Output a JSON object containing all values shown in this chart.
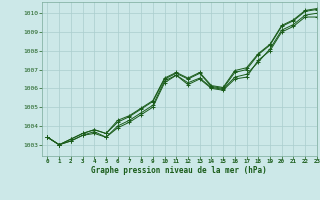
{
  "title": "Graphe pression niveau de la mer (hPa)",
  "bg_color": "#cce8e8",
  "grid_color": "#aacece",
  "line_color": "#1a5c1a",
  "xlim": [
    -0.5,
    23
  ],
  "ylim": [
    1002.4,
    1010.6
  ],
  "yticks": [
    1003,
    1004,
    1005,
    1006,
    1007,
    1008,
    1009,
    1010
  ],
  "xticks": [
    0,
    1,
    2,
    3,
    4,
    5,
    6,
    7,
    8,
    9,
    10,
    11,
    12,
    13,
    14,
    15,
    16,
    17,
    18,
    19,
    20,
    21,
    22,
    23
  ],
  "series": [
    [
      1003.4,
      1003.0,
      1003.2,
      1003.5,
      1003.6,
      1003.4,
      1003.9,
      1004.2,
      1004.6,
      1005.0,
      1006.3,
      1006.7,
      1006.2,
      1006.5,
      1006.0,
      1005.9,
      1006.5,
      1006.6,
      1007.5,
      1008.0,
      1009.0,
      1009.3,
      1009.8,
      1009.8
    ],
    [
      1003.4,
      1003.0,
      1003.2,
      1003.5,
      1003.7,
      1003.4,
      1004.0,
      1004.3,
      1004.7,
      1005.1,
      1006.4,
      1006.7,
      1006.3,
      1006.55,
      1006.05,
      1005.95,
      1006.6,
      1006.75,
      1007.4,
      1008.1,
      1009.1,
      1009.4,
      1009.9,
      1010.0
    ],
    [
      1003.4,
      1003.0,
      1003.3,
      1003.6,
      1003.8,
      1003.6,
      1004.2,
      1004.5,
      1004.9,
      1005.3,
      1006.5,
      1006.8,
      1006.5,
      1006.8,
      1006.1,
      1006.0,
      1006.85,
      1007.0,
      1007.8,
      1008.3,
      1009.3,
      1009.6,
      1010.1,
      1010.2
    ],
    [
      1003.4,
      1003.0,
      1003.3,
      1003.6,
      1003.8,
      1003.6,
      1004.3,
      1004.55,
      1004.95,
      1005.35,
      1006.55,
      1006.85,
      1006.55,
      1006.85,
      1006.15,
      1006.05,
      1006.95,
      1007.1,
      1007.85,
      1008.35,
      1009.35,
      1009.65,
      1010.15,
      1010.25
    ]
  ]
}
